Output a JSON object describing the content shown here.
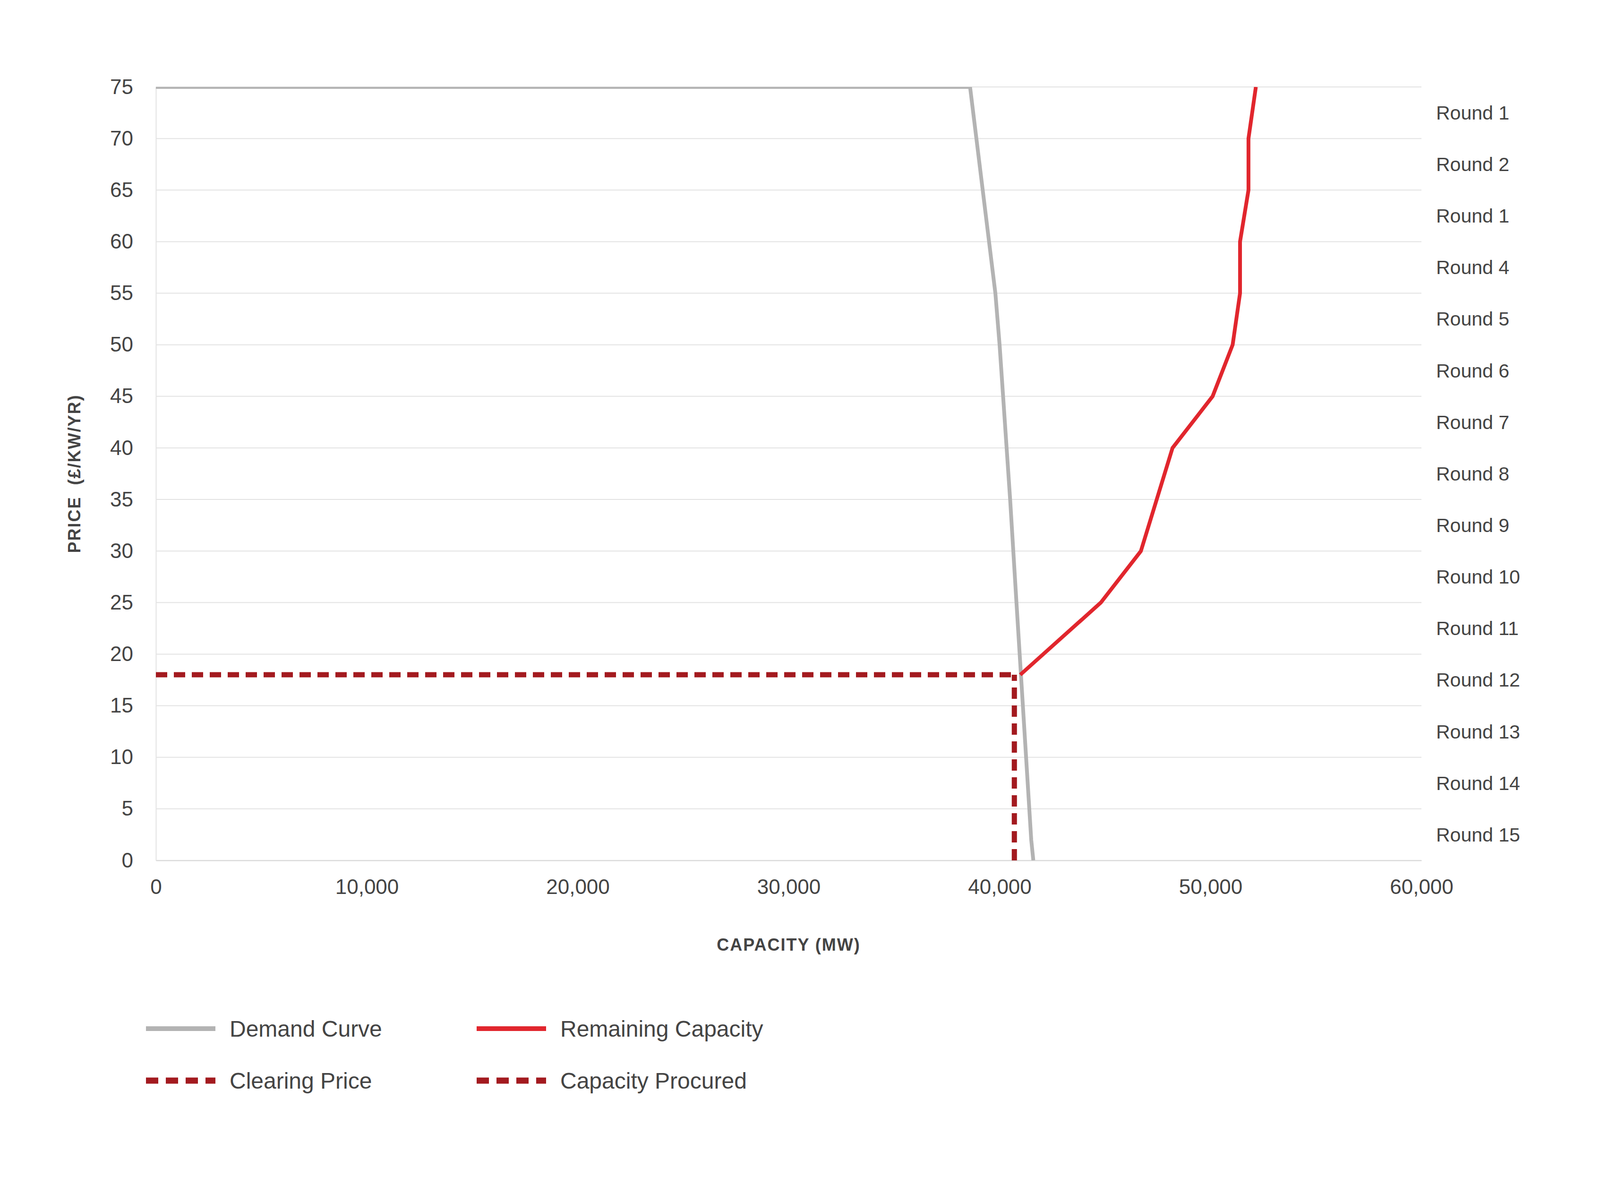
{
  "chart_data": {
    "type": "line",
    "x_label": "CAPACITY (MW)",
    "y_label": "PRICE  (£/KW/YR)",
    "xlim": [
      0,
      60000
    ],
    "xticks": [
      0,
      {
        "value": 10000,
        "label": "10,000"
      },
      {
        "value": 20000,
        "label": "20,000"
      },
      {
        "value": 30000,
        "label": "30,000"
      },
      {
        "value": 40000,
        "label": "40,000"
      },
      {
        "value": 50000,
        "label": "50,000"
      },
      {
        "value": 60000,
        "label": "60,000"
      }
    ],
    "ylim": [
      0,
      75
    ],
    "yticks": [
      0,
      5,
      10,
      15,
      20,
      25,
      30,
      35,
      40,
      45,
      50,
      55,
      60,
      65,
      70,
      75
    ],
    "grid": true,
    "legend": "bottom",
    "annotations": [
      "Round 1",
      "Round 2",
      "Round 1",
      "Round 4",
      "Round 5",
      "Round 6",
      "Round 7",
      "Round 8",
      "Round 9",
      "Round 10",
      "Round 11",
      "Round 12",
      "Round 13",
      "Round 14",
      "Round 15"
    ],
    "series": [
      {
        "name": "Demand Curve",
        "color": "#b3b3b3",
        "line_style": "solid",
        "x": [
          0,
          38600,
          39800,
          40000,
          40500,
          40800,
          41500,
          41600
        ],
        "values": [
          75,
          75,
          55,
          50,
          35,
          25,
          2,
          0
        ]
      },
      {
        "name": "Remaining Capacity",
        "color": "#e1262d",
        "line_style": "solid",
        "x": [
          40980,
          44800,
          46700,
          48200,
          50100,
          51050,
          51400,
          51400,
          51800,
          51800,
          52150
        ],
        "values": [
          18,
          25,
          30,
          40,
          45,
          50,
          55,
          60,
          65,
          70,
          75
        ]
      },
      {
        "name": "Clearing Price",
        "color": "#a31a1f",
        "line_style": "dashed",
        "x": [
          0,
          40700
        ],
        "values": [
          18,
          18
        ]
      },
      {
        "name": "Capacity Procured",
        "color": "#a31a1f",
        "line_style": "dashed",
        "x": [
          40700,
          40700
        ],
        "values": [
          0,
          18
        ]
      }
    ]
  }
}
